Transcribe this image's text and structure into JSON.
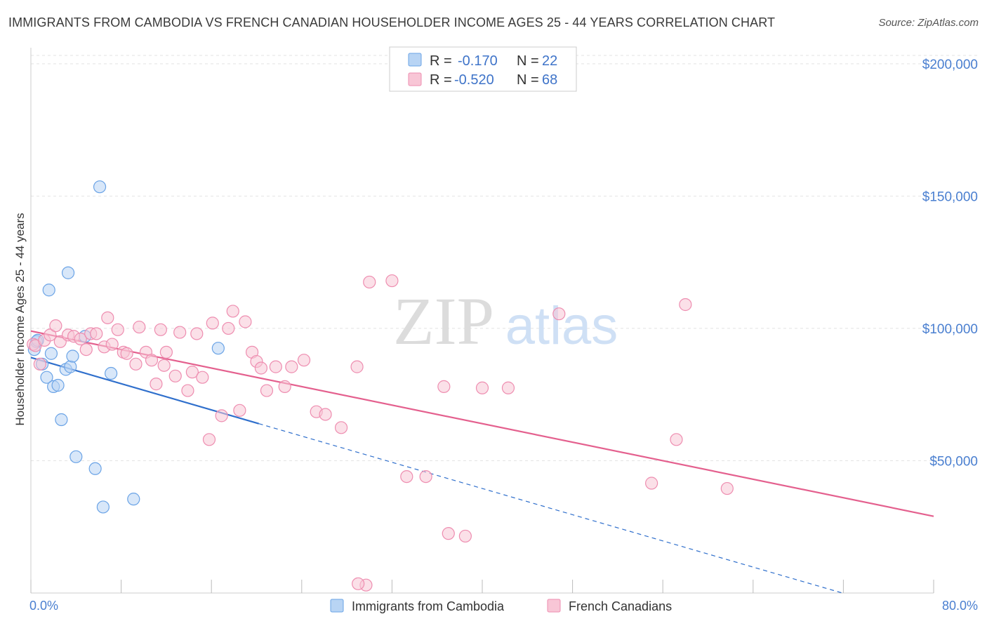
{
  "header": {
    "title": "IMMIGRANTS FROM CAMBODIA VS FRENCH CANADIAN HOUSEHOLDER INCOME AGES 25 - 44 YEARS CORRELATION CHART",
    "source": "Source: ZipAtlas.com"
  },
  "watermark": {
    "zip": "ZIP",
    "atlas": "atlas"
  },
  "legend": {
    "r_label": "R =",
    "n_label": "N =",
    "entries": [
      {
        "r": "-0.170",
        "n": "22",
        "color": "#9ec3ef"
      },
      {
        "r": "-0.520",
        "n": "68",
        "color": "#f5b3c8"
      }
    ]
  },
  "bottom_legend": {
    "items": [
      {
        "label": "Immigrants from Cambodia",
        "color": "#9ec3ef"
      },
      {
        "label": "French Canadians",
        "color": "#f5b3c8"
      }
    ]
  },
  "chart_data": {
    "type": "scatter",
    "ylabel": "Householder Income Ages 25 - 44 years",
    "xlim": [
      0,
      80
    ],
    "ylim": [
      0,
      205000
    ],
    "x_tick_labels": {
      "left": "0.0%",
      "right": "80.0%"
    },
    "y_ticks": [
      {
        "value": 50000,
        "label": "$50,000"
      },
      {
        "value": 100000,
        "label": "$100,000"
      },
      {
        "value": 150000,
        "label": "$150,000"
      },
      {
        "value": 200000,
        "label": "$200,000"
      }
    ],
    "grid": true,
    "series": [
      {
        "name": "Immigrants from Cambodia",
        "color": "#6aa3e6",
        "fill": "#b8d4f4",
        "trend": {
          "x0": 0,
          "y0": 89000,
          "x1": 20.2,
          "y1": 64000,
          "dash_to_x": 80,
          "color": "#2f6fcc"
        },
        "points": [
          [
            0.3,
            92000
          ],
          [
            0.5,
            95000
          ],
          [
            1.0,
            86500
          ],
          [
            1.4,
            81500
          ],
          [
            1.6,
            114500
          ],
          [
            1.8,
            90500
          ],
          [
            2.0,
            78000
          ],
          [
            2.4,
            78500
          ],
          [
            2.7,
            65500
          ],
          [
            3.1,
            84500
          ],
          [
            3.3,
            121000
          ],
          [
            3.5,
            85500
          ],
          [
            3.7,
            89500
          ],
          [
            4.0,
            51500
          ],
          [
            4.8,
            97000
          ],
          [
            5.7,
            47000
          ],
          [
            6.1,
            153500
          ],
          [
            6.4,
            32500
          ],
          [
            7.1,
            83000
          ],
          [
            9.1,
            35500
          ],
          [
            16.6,
            92500
          ],
          [
            0.6,
            95500
          ]
        ]
      },
      {
        "name": "French Canadians",
        "color": "#ee8db0",
        "fill": "#f8c6d6",
        "trend": {
          "x0": 0,
          "y0": 99000,
          "x1": 80,
          "y1": 29000,
          "color": "#e4608e"
        },
        "points": [
          [
            0.2,
            94000
          ],
          [
            0.4,
            93500
          ],
          [
            0.8,
            86500
          ],
          [
            1.2,
            95500
          ],
          [
            1.7,
            97500
          ],
          [
            2.2,
            101000
          ],
          [
            2.6,
            95000
          ],
          [
            3.3,
            97500
          ],
          [
            3.8,
            97000
          ],
          [
            4.4,
            96000
          ],
          [
            4.9,
            92000
          ],
          [
            5.3,
            98000
          ],
          [
            5.8,
            98000
          ],
          [
            6.5,
            93000
          ],
          [
            6.8,
            104000
          ],
          [
            7.2,
            94000
          ],
          [
            7.7,
            99500
          ],
          [
            8.2,
            91000
          ],
          [
            8.5,
            90500
          ],
          [
            9.3,
            86500
          ],
          [
            9.6,
            100500
          ],
          [
            10.2,
            91000
          ],
          [
            10.7,
            88000
          ],
          [
            11.1,
            79000
          ],
          [
            11.5,
            99500
          ],
          [
            12.0,
            91000
          ],
          [
            12.8,
            82000
          ],
          [
            13.2,
            98500
          ],
          [
            13.9,
            76500
          ],
          [
            14.3,
            83500
          ],
          [
            14.7,
            98000
          ],
          [
            15.2,
            81500
          ],
          [
            16.1,
            102000
          ],
          [
            16.9,
            67000
          ],
          [
            17.5,
            100000
          ],
          [
            17.9,
            106500
          ],
          [
            18.5,
            69000
          ],
          [
            19.0,
            102500
          ],
          [
            19.6,
            91000
          ],
          [
            20.0,
            87500
          ],
          [
            20.4,
            85000
          ],
          [
            20.9,
            76500
          ],
          [
            21.7,
            85500
          ],
          [
            22.5,
            78000
          ],
          [
            23.1,
            85500
          ],
          [
            24.2,
            88000
          ],
          [
            25.3,
            68500
          ],
          [
            26.1,
            67500
          ],
          [
            27.5,
            62500
          ],
          [
            28.9,
            85500
          ],
          [
            30.0,
            117500
          ],
          [
            32.0,
            118000
          ],
          [
            33.3,
            44000
          ],
          [
            35.0,
            44000
          ],
          [
            36.6,
            78000
          ],
          [
            37.0,
            22500
          ],
          [
            38.5,
            21500
          ],
          [
            40.0,
            77500
          ],
          [
            42.3,
            77500
          ],
          [
            46.8,
            105500
          ],
          [
            55.0,
            41500
          ],
          [
            57.2,
            58000
          ],
          [
            58.0,
            109000
          ],
          [
            61.7,
            39500
          ],
          [
            29.7,
            3000
          ],
          [
            29.0,
            3500
          ],
          [
            11.8,
            86000
          ],
          [
            15.8,
            58000
          ]
        ]
      }
    ]
  }
}
